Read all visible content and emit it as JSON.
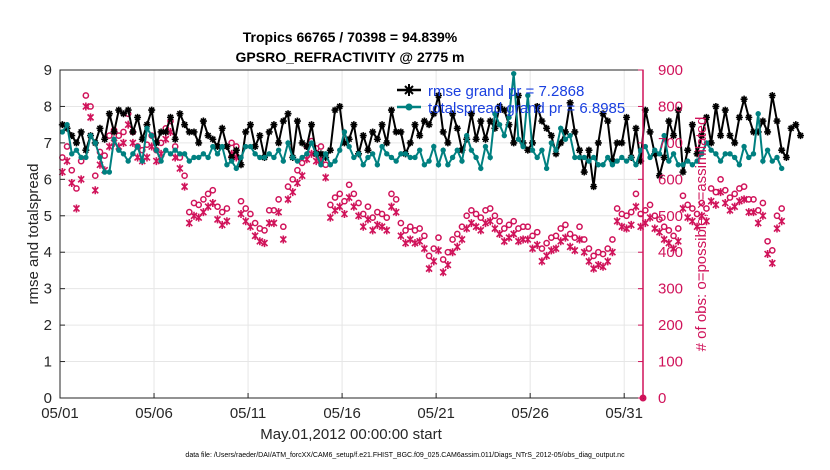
{
  "chart_data": {
    "type": "line",
    "title": "Tropics 66765 / 70398 = 94.839%",
    "subtitle": "GPSRO_REFRACTIVITY @ 2775 m",
    "xlabel": "May.01,2012 00:00:00 start",
    "ylabel": "rmse and totalspread",
    "ylabel_right": "# of obs: o=possible; ×=assimilated",
    "x_tick_labels": [
      "05/01",
      "05/06",
      "05/11",
      "05/16",
      "05/21",
      "05/26",
      "05/31"
    ],
    "x_tick_days": [
      0,
      5,
      10,
      15,
      20,
      25,
      30
    ],
    "xlim": [
      0,
      31
    ],
    "ylim": [
      0,
      9
    ],
    "y_ticks": [
      0,
      1,
      2,
      3,
      4,
      5,
      6,
      7,
      8,
      9
    ],
    "ylim_right": [
      0,
      900
    ],
    "y_ticks_right": [
      0,
      100,
      200,
      300,
      400,
      500,
      600,
      700,
      800,
      900
    ],
    "grid": true,
    "legend_position": "top-right",
    "x_step_days": 0.25,
    "series": [
      {
        "name": "rmse grand pr = 7.2868",
        "axis": "left",
        "color": "#000000",
        "marker": "star",
        "values": [
          7.5,
          7.4,
          7.2,
          7.0,
          7.3,
          6.8,
          7.2,
          7.0,
          7.4,
          7.1,
          7.8,
          7.3,
          7.9,
          7.8,
          7.9,
          7.3,
          7.7,
          7.1,
          7.5,
          7.9,
          7.0,
          7.3,
          7.3,
          7.7,
          7.1,
          7.8,
          7.5,
          7.3,
          7.3,
          7.0,
          7.6,
          7.2,
          7.1,
          6.9,
          7.4,
          6.9,
          6.6,
          6.8,
          6.4,
          7.3,
          7.5,
          6.9,
          7.2,
          6.6,
          7.3,
          7.5,
          7.0,
          7.6,
          7.8,
          6.6,
          7.6,
          7.0,
          6.9,
          7.5,
          6.7,
          6.7,
          6.6,
          6.8,
          7.9,
          8.0,
          7.0,
          7.1,
          7.5,
          6.7,
          7.2,
          6.8,
          7.3,
          7.1,
          7.5,
          7.0,
          7.9,
          7.3,
          7.3,
          6.7,
          7.0,
          7.5,
          7.2,
          7.6,
          7.5,
          7.8,
          8.3,
          7.3,
          7.0,
          7.8,
          7.4,
          6.8,
          7.1,
          7.8,
          7.1,
          7.6,
          7.1,
          7.6,
          7.4,
          8.0,
          7.9,
          7.5,
          7.0,
          8.3,
          7.0,
          6.8,
          7.0,
          8.0,
          7.6,
          7.4,
          7.2,
          6.7,
          7.0,
          7.3,
          8.1,
          7.3,
          6.8,
          6.2,
          6.8,
          5.8,
          7.0,
          7.8,
          7.6,
          6.5,
          7.0,
          7.0,
          7.7,
          6.6,
          7.4,
          6.5,
          7.9,
          7.3,
          6.7,
          6.1,
          6.6,
          7.6,
          7.2,
          7.9,
          6.2,
          6.8,
          7.5,
          6.7,
          7.2,
          7.7,
          7.0,
          8.0,
          7.2,
          7.9,
          7.2,
          7.0,
          7.7,
          8.2,
          7.7,
          7.3,
          7.3,
          7.6,
          7.3,
          8.3,
          7.6,
          6.8,
          6.6,
          7.4,
          7.5,
          7.2
        ]
      },
      {
        "name": "totalspread grand pr = 6.8985",
        "axis": "left",
        "color": "#008080",
        "marker": "circle",
        "values": [
          7.3,
          7.5,
          6.7,
          6.8,
          6.6,
          6.6,
          7.2,
          7.0,
          6.6,
          6.2,
          6.2,
          7.1,
          6.8,
          6.7,
          6.5,
          6.7,
          6.9,
          6.5,
          7.4,
          7.2,
          6.8,
          6.5,
          6.8,
          6.7,
          6.8,
          6.7,
          6.7,
          6.5,
          6.6,
          6.6,
          6.7,
          6.6,
          6.9,
          6.7,
          6.9,
          6.4,
          6.5,
          6.3,
          6.6,
          6.9,
          6.9,
          6.7,
          6.6,
          6.6,
          6.7,
          6.6,
          6.8,
          6.5,
          7.0,
          6.6,
          6.5,
          6.6,
          6.7,
          7.0,
          6.7,
          6.4,
          6.7,
          6.4,
          6.5,
          6.8,
          7.3,
          6.9,
          6.6,
          6.7,
          6.4,
          6.6,
          6.7,
          6.4,
          6.9,
          6.7,
          6.6,
          6.5,
          6.7,
          6.7,
          6.6,
          6.6,
          6.8,
          6.4,
          6.5,
          6.9,
          6.4,
          6.8,
          6.4,
          6.6,
          6.8,
          6.5,
          7.2,
          6.8,
          6.6,
          6.3,
          6.9,
          6.6,
          7.8,
          7.5,
          7.2,
          7.7,
          8.9,
          7.1,
          6.9,
          8.3,
          6.8,
          6.6,
          6.8,
          6.3,
          7.0,
          6.8,
          7.4,
          7.1,
          7.2,
          6.6,
          6.6,
          6.6,
          6.5,
          6.6,
          6.4,
          6.4,
          6.6,
          6.4,
          6.5,
          6.6,
          6.5,
          6.6,
          6.4,
          6.8,
          6.9,
          6.6,
          6.8,
          6.7,
          7.2,
          6.5,
          6.7,
          6.4,
          6.4,
          6.5,
          6.4,
          6.5,
          6.7,
          7.0,
          6.8,
          6.7,
          6.5,
          6.7,
          6.7,
          6.6,
          6.4,
          6.9,
          6.6,
          6.7,
          7.8,
          6.5,
          6.8,
          6.5,
          6.6,
          6.3
        ]
      },
      {
        "name": "possible",
        "axis": "right",
        "color": "#d0135a",
        "marker": "o",
        "values": [
          660,
          690,
          625,
          575,
          650,
          830,
          800,
          610,
          675,
          665,
          720,
          735,
          720,
          730,
          780,
          730,
          690,
          680,
          695,
          720,
          680,
          700,
          740,
          760,
          690,
          660,
          610,
          510,
          535,
          530,
          545,
          560,
          570,
          525,
          510,
          520,
          700,
          690,
          540,
          520,
          505,
          480,
          465,
          460,
          515,
          515,
          545,
          470,
          580,
          600,
          625,
          645,
          690,
          705,
          685,
          690,
          640,
          530,
          550,
          560,
          540,
          585,
          560,
          535,
          505,
          525,
          495,
          510,
          505,
          495,
          560,
          545,
          480,
          460,
          470,
          460,
          465,
          445,
          390,
          410,
          440,
          380,
          400,
          435,
          450,
          470,
          500,
          515,
          505,
          495,
          515,
          520,
          500,
          485,
          465,
          475,
          485,
          465,
          470,
          470,
          445,
          455,
          410,
          425,
          440,
          445,
          465,
          475,
          450,
          440,
          470,
          435,
          410,
          390,
          400,
          395,
          410,
          435,
          520,
          505,
          500,
          510,
          560,
          505,
          515,
          530,
          500,
          490,
          470,
          460,
          445,
          465,
          555,
          530,
          520,
          505,
          535,
          520,
          575,
          565,
          600,
          570,
          550,
          560,
          575,
          580,
          545,
          545,
          515,
          535,
          430,
          405,
          500,
          520
        ]
      },
      {
        "name": "assimilated",
        "axis": "right",
        "color": "#d0135a",
        "marker": "x",
        "values": [
          620,
          650,
          590,
          520,
          600,
          800,
          770,
          570,
          640,
          625,
          690,
          700,
          690,
          700,
          750,
          700,
          660,
          650,
          660,
          690,
          650,
          670,
          710,
          730,
          660,
          630,
          580,
          480,
          500,
          495,
          510,
          525,
          535,
          490,
          475,
          485,
          670,
          660,
          505,
          485,
          470,
          445,
          430,
          425,
          480,
          480,
          510,
          435,
          545,
          565,
          590,
          610,
          655,
          670,
          650,
          655,
          605,
          495,
          515,
          525,
          505,
          550,
          525,
          500,
          470,
          490,
          460,
          475,
          470,
          460,
          525,
          510,
          445,
          425,
          435,
          425,
          430,
          410,
          355,
          375,
          405,
          345,
          365,
          400,
          415,
          435,
          465,
          480,
          470,
          460,
          480,
          485,
          465,
          450,
          430,
          440,
          450,
          430,
          435,
          435,
          410,
          420,
          375,
          390,
          405,
          410,
          430,
          440,
          415,
          405,
          435,
          400,
          375,
          355,
          365,
          360,
          375,
          400,
          485,
          470,
          465,
          475,
          525,
          470,
          480,
          495,
          465,
          455,
          435,
          425,
          410,
          430,
          520,
          495,
          485,
          470,
          500,
          485,
          540,
          530,
          565,
          535,
          515,
          525,
          540,
          545,
          510,
          510,
          480,
          500,
          395,
          370,
          465,
          485
        ]
      }
    ]
  },
  "footer": {
    "data_file": "data file: /Users/raeder/DAI/ATM_forcXX/CAM6_setup/f.e21.FHIST_BGC.f09_025.CAM6assim.011/Diags_NTrS_2012-05/obs_diag_output.nc"
  }
}
